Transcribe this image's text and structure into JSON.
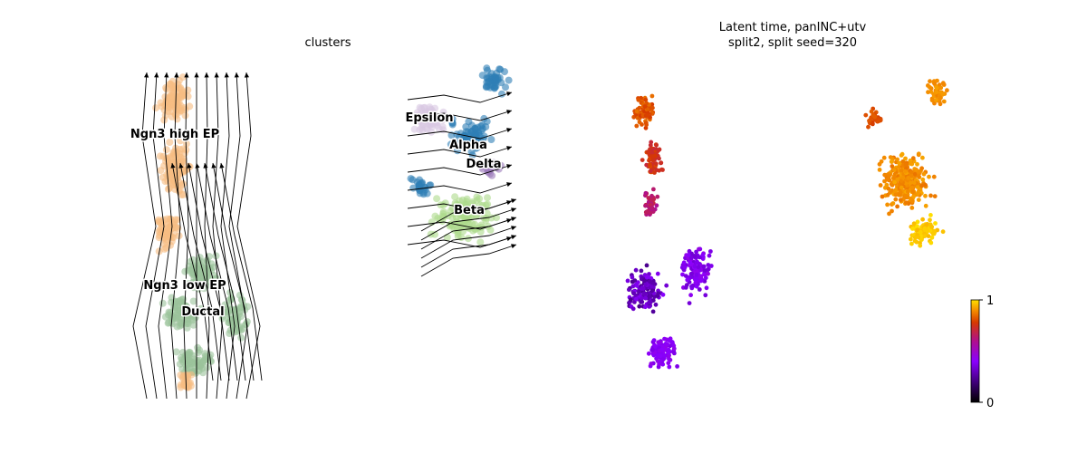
{
  "panels": {
    "left_title": "clusters",
    "right_title_line1": "Latent time, panINC+utv",
    "right_title_line2": "split2, split seed=320"
  },
  "chart_data": [
    {
      "type": "scatter",
      "title": "clusters",
      "subtype": "embedding with velocity streamlines",
      "legend": "on data",
      "grid": false,
      "clusters": [
        {
          "name": "Ngn3 high EP",
          "color": "#f6bd82"
        },
        {
          "name": "Ngn3 low EP",
          "color": "#9bc39b"
        },
        {
          "name": "Ductal",
          "color": "#9bc39b"
        },
        {
          "name": "Epsilon",
          "color": "#d8c8e2"
        },
        {
          "name": "Alpha",
          "color": "#2e7fb6"
        },
        {
          "name": "Delta",
          "color": "#9c7bbb"
        },
        {
          "name": "Beta",
          "color": "#aedb8c"
        }
      ],
      "streamline_color": "#000000"
    },
    {
      "type": "scatter",
      "title": "Latent time, panINC+utv\nsplit2, split seed=320",
      "colorbar": {
        "min": 0,
        "max": 1,
        "ticks": [
          "0",
          "1"
        ],
        "colormap": "gnuplot"
      },
      "grid": false
    }
  ]
}
